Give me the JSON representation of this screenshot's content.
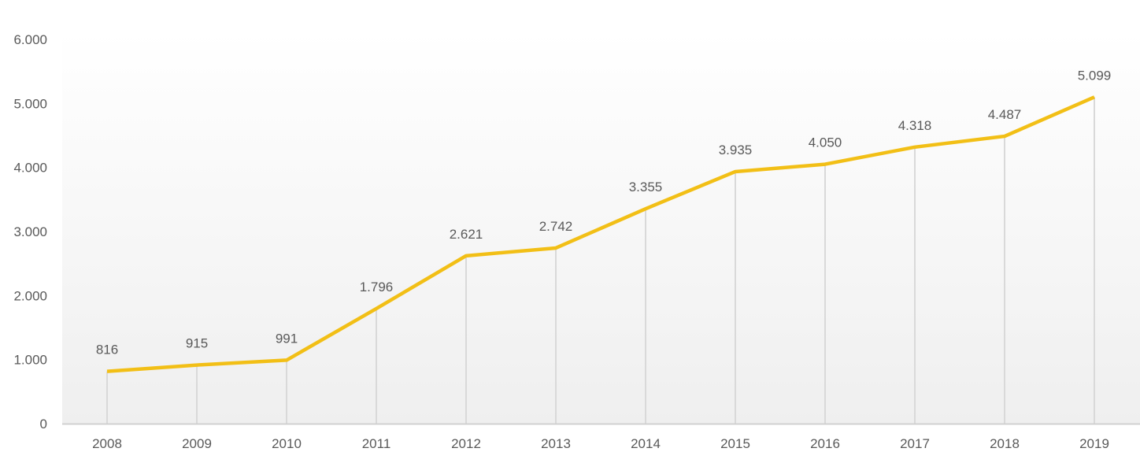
{
  "chart_data": {
    "type": "line",
    "title": "",
    "xlabel": "",
    "ylabel": "",
    "categories": [
      "2008",
      "2009",
      "2010",
      "2011",
      "2012",
      "2013",
      "2014",
      "2015",
      "2016",
      "2017",
      "2018",
      "2019"
    ],
    "series": [
      {
        "name": "",
        "values": [
          816,
          915,
          991,
          1796,
          2621,
          2742,
          3355,
          3935,
          4050,
          4318,
          4487,
          5099
        ],
        "color": "#F2BF16"
      }
    ],
    "data_labels": [
      "816",
      "915",
      "991",
      "1.796",
      "2.621",
      "2.742",
      "3.355",
      "3.935",
      "4.050",
      "4.318",
      "4.487",
      "5.099"
    ],
    "ylim": [
      0,
      6000
    ],
    "yticks": [
      0,
      1000,
      2000,
      3000,
      4000,
      5000,
      6000
    ],
    "ytick_labels": [
      "0",
      "1.000",
      "2.000",
      "3.000",
      "4.000",
      "5.000",
      "6.000"
    ],
    "grid": false,
    "drop_lines": true,
    "legend": "none"
  }
}
